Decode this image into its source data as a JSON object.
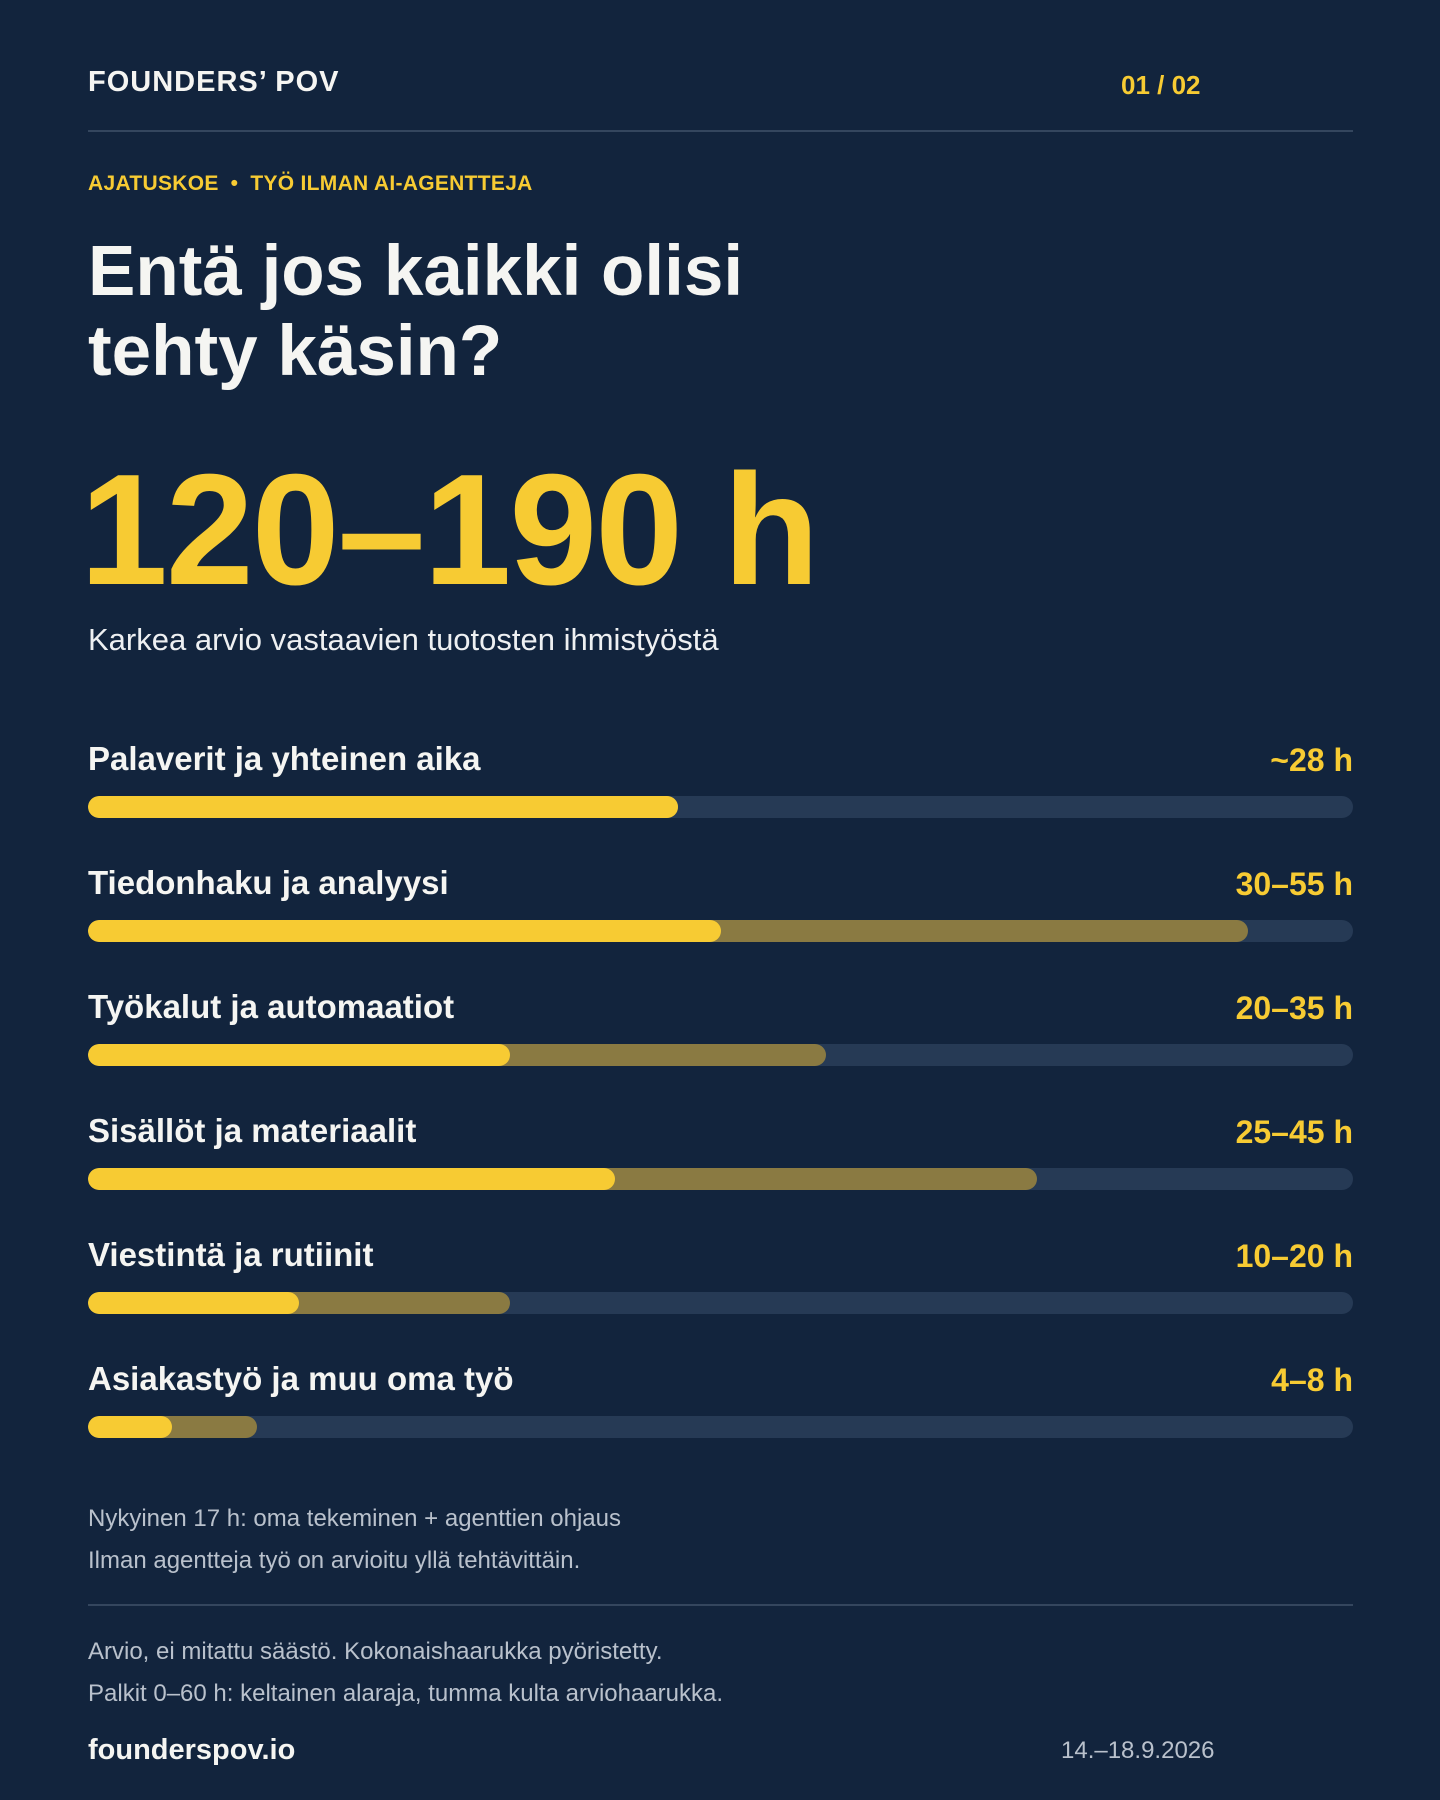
{
  "header": {
    "brand": "FOUNDERS’ POV",
    "pager": "01 / 02"
  },
  "eyebrow": {
    "left": "AJATUSKOE",
    "separator": "•",
    "right": "TYÖ ILMAN AI-AGENTTEJA"
  },
  "headline": {
    "line1": "Entä jos kaikki olisi",
    "line2": "tehty käsin?"
  },
  "total": {
    "value": "120–190 h",
    "caption": "Karkea arvio vastaavien tuotosten ihmistyöstä"
  },
  "scale_max_hours": 60,
  "categories": [
    {
      "label": "Palaverit ja yhteinen aika",
      "value_text": "~28 h",
      "low": 28,
      "high": 28
    },
    {
      "label": "Tiedonhaku ja analyysi",
      "value_text": "30–55 h",
      "low": 30,
      "high": 55
    },
    {
      "label": "Työkalut ja automaatiot",
      "value_text": "20–35 h",
      "low": 20,
      "high": 35
    },
    {
      "label": "Sisällöt ja materiaalit",
      "value_text": "25–45 h",
      "low": 25,
      "high": 45
    },
    {
      "label": "Viestintä ja rutiinit",
      "value_text": "10–20 h",
      "low": 10,
      "high": 20
    },
    {
      "label": "Asiakastyö ja muu oma työ",
      "value_text": "4–8 h",
      "low": 4,
      "high": 8
    }
  ],
  "notes": {
    "line1": "Nykyinen 17 h: oma tekeminen + agenttien ohjaus",
    "line2": "Ilman agentteja työ on arvioitu yllä tehtävittäin.",
    "line3": "Arvio, ei mitattu säästö. Kokonaishaarukka pyöristetty.",
    "line4": "Palkit 0–60 h: keltainen alaraja, tumma kulta arviohaarukka."
  },
  "footer": {
    "site": "founderspov.io",
    "date": "14.–18.9.2026"
  },
  "colors": {
    "background": "#12243d",
    "accent_yellow": "#f7cb33",
    "range_gold": "#8a7a42",
    "track": "#263a55"
  }
}
